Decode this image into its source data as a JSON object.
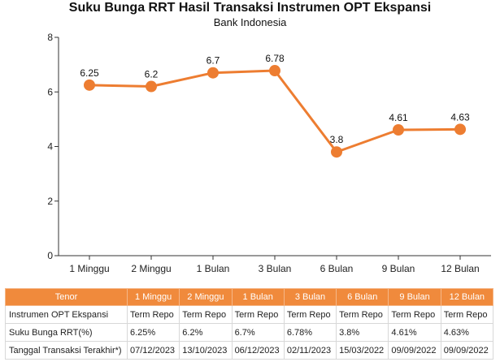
{
  "chart_data": {
    "type": "line",
    "title": "Suku Bunga RRT Hasil Transaksi Instrumen OPT Ekspansi",
    "subtitle": "Bank Indonesia",
    "categories": [
      "1 Minggu",
      "2 Minggu",
      "1 Bulan",
      "3 Bulan",
      "6 Bulan",
      "9 Bulan",
      "12 Bulan"
    ],
    "series": [
      {
        "values": [
          6.25,
          6.2,
          6.7,
          6.78,
          3.8,
          4.61,
          4.63
        ],
        "color": "#ed7d31"
      }
    ],
    "data_labels": [
      "6.25",
      "6.2",
      "6.7",
      "6.78",
      "3.8",
      "4.61",
      "4.63"
    ],
    "ylim": [
      0,
      8
    ],
    "yticks": [
      0,
      2,
      4,
      6,
      8
    ],
    "grid": false
  },
  "table": {
    "header_label": "Tenor",
    "columns": [
      "1 Minggu",
      "2 Minggu",
      "1 Bulan",
      "3 Bulan",
      "6 Bulan",
      "9 Bulan",
      "12 Bulan"
    ],
    "rows": [
      {
        "label": "Instrumen OPT Ekspansi",
        "cells": [
          "Term Repo",
          "Term Repo",
          "Term Repo",
          "Term Repo",
          "Term Repo",
          "Term Repo",
          "Term Repo"
        ]
      },
      {
        "label": "Suku Bunga RRT(%)",
        "cells": [
          "6.25%",
          "6.2%",
          "6.7%",
          "6.78%",
          "3.8%",
          "4.61%",
          "4.63%"
        ]
      },
      {
        "label": "Tanggal Transaksi Terakhir*)",
        "cells": [
          "07/12/2023",
          "13/10/2023",
          "06/12/2023",
          "02/11/2023",
          "15/03/2022",
          "09/09/2022",
          "09/09/2022"
        ]
      }
    ],
    "header_color": "#f08a3c"
  }
}
